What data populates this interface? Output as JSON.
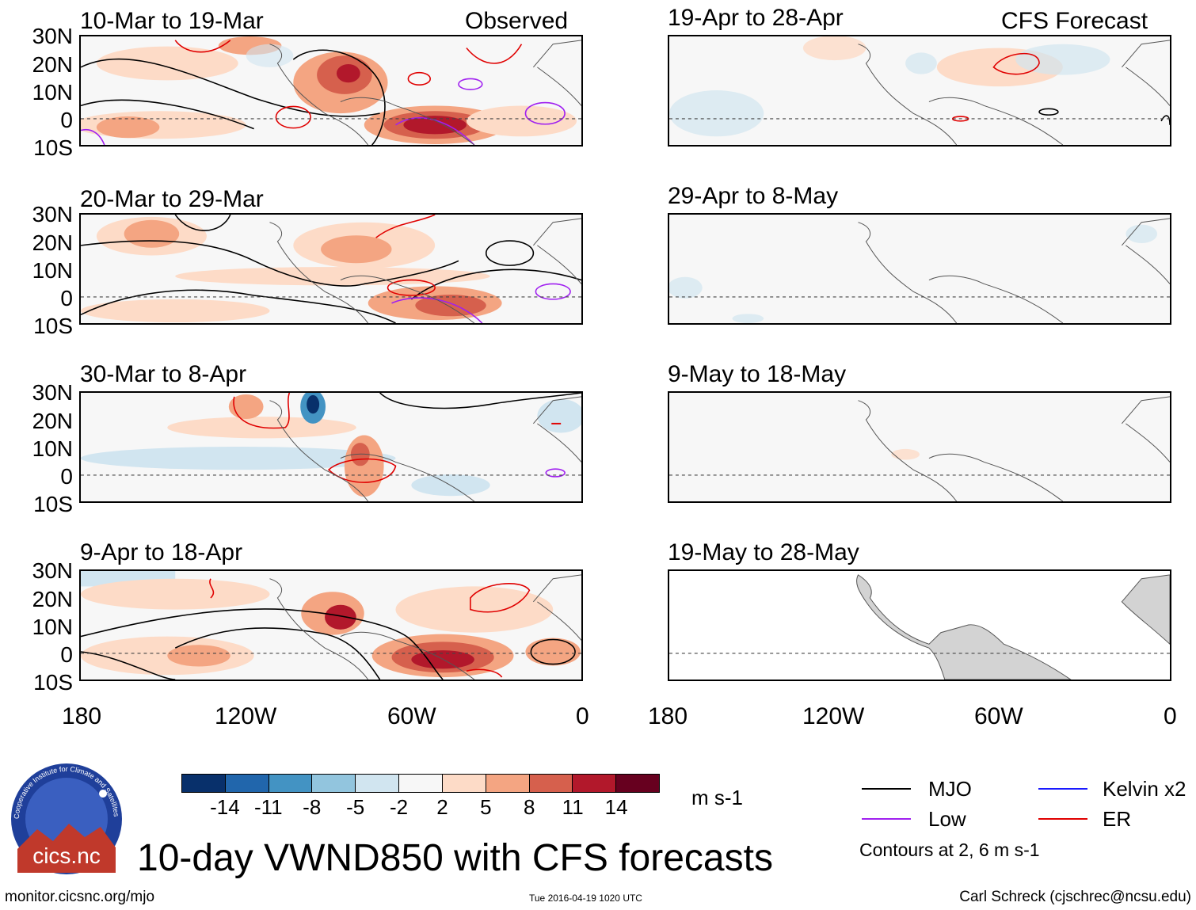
{
  "header": {
    "left_label": "Observed",
    "right_label": "CFS Forecast"
  },
  "observed_panels": [
    {
      "title": "10-Mar to 19-Mar"
    },
    {
      "title": "20-Mar to 29-Mar"
    },
    {
      "title": "30-Mar to 8-Apr"
    },
    {
      "title": "9-Apr to 18-Apr"
    }
  ],
  "forecast_panels": [
    {
      "title": "19-Apr to 28-Apr"
    },
    {
      "title": "29-Apr to 8-May"
    },
    {
      "title": "9-May to 18-May"
    },
    {
      "title": "19-May to 28-May"
    }
  ],
  "lat_labels": [
    "30N",
    "20N",
    "10N",
    "0",
    "10S"
  ],
  "lon_labels": [
    "180",
    "120W",
    "60W",
    "0"
  ],
  "colorbar": {
    "ticks": [
      "-14",
      "-11",
      "-8",
      "-5",
      "-2",
      "2",
      "5",
      "8",
      "11",
      "14"
    ],
    "colors": [
      "#08306b",
      "#2166ac",
      "#4393c3",
      "#92c5de",
      "#d1e5f0",
      "#f7f7f7",
      "#fddbc7",
      "#f4a582",
      "#d6604d",
      "#b2182b",
      "#67001f"
    ],
    "units": "m s-1"
  },
  "legend": {
    "items": [
      {
        "label": "MJO",
        "color": "#000000"
      },
      {
        "label": "Kelvin x2",
        "color": "#1a1aff"
      },
      {
        "label": "Low",
        "color": "#a020f0"
      },
      {
        "label": "ER",
        "color": "#e00000"
      }
    ],
    "note": "Contours at 2, 6 m s-1"
  },
  "title": "10-day VWND850 with CFS forecasts",
  "logo": {
    "text": "cics.nc",
    "ring_text": "Cooperative Institute for Climate and Satellites"
  },
  "footer": {
    "url": "monitor.cicsnc.org/mjo",
    "timestamp": "Tue 2016-04-19 1020 UTC",
    "author": "Carl Schreck (cjschrec@ncsu.edu)"
  }
}
